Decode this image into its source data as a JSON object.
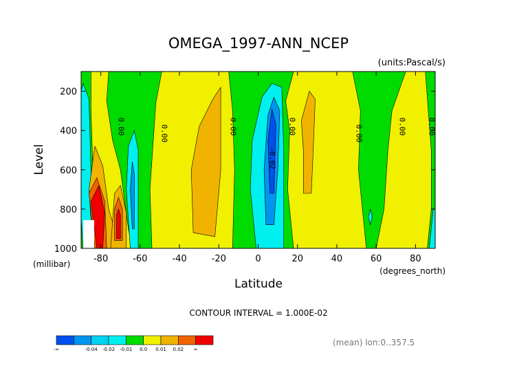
{
  "chart_data": {
    "type": "contour",
    "title": "OMEGA_1997-ANN_NCEP",
    "units_label": "(units:Pascal/s)",
    "xlabel": "Latitude",
    "ylabel": "Level",
    "x_unit_label": "(degrees_north)",
    "y_unit_label": "(millibar)",
    "xlim": [
      -90,
      90
    ],
    "ylim": [
      1000,
      100
    ],
    "xticks": [
      -80,
      -60,
      -40,
      -20,
      0,
      20,
      40,
      60,
      80
    ],
    "xtick_labels": [
      "-80",
      "-60",
      "-40",
      "-20",
      "0",
      "20",
      "40",
      "60",
      "80"
    ],
    "yticks": [
      200,
      400,
      600,
      800,
      1000
    ],
    "ytick_labels": [
      "200",
      "400",
      "600",
      "800",
      "1000"
    ],
    "contour_interval_text": "CONTOUR INTERVAL = 1.000E-02",
    "footer_note": "(mean) lon:0..357.5",
    "colorbar": {
      "colors": [
        "#0050f0",
        "#0096f0",
        "#00d2f0",
        "#00f0f0",
        "#00dc00",
        "#f0f000",
        "#f0b400",
        "#f06400",
        "#f00000"
      ],
      "labels": [
        "-∞",
        "-0.04",
        "-0.02",
        "-0.01",
        "0.0",
        "0.01",
        "0.02",
        "∞"
      ]
    },
    "contour_labels": [
      {
        "text": "0.00",
        "lat": -71,
        "level": 380
      },
      {
        "text": "0.00",
        "lat": -49,
        "level": 415
      },
      {
        "text": "0.00",
        "lat": -14,
        "level": 380
      },
      {
        "text": "-0.02",
        "lat": 6,
        "level": 540
      },
      {
        "text": "0.00",
        "lat": 16,
        "level": 380
      },
      {
        "text": "0.00",
        "lat": 50,
        "level": 415
      },
      {
        "text": "0.00",
        "lat": 72,
        "level": 380
      },
      {
        "text": "0.00",
        "lat": 87,
        "level": 380
      }
    ],
    "regions": [
      {
        "class": "-0.01",
        "color": "#00f0f0",
        "pts": [
          [
            -89,
            1000
          ],
          [
            -90,
            850
          ],
          [
            -90,
            200
          ],
          [
            -89,
            160
          ],
          [
            -86,
            240
          ],
          [
            -85,
            600
          ],
          [
            -84,
            1000
          ]
        ]
      },
      {
        "class": "0.0",
        "color": "#f0f000",
        "pts": [
          [
            -85,
            100
          ],
          [
            -76,
            100
          ],
          [
            -77,
            250
          ],
          [
            -74,
            450
          ],
          [
            -70,
            600
          ],
          [
            -66,
            900
          ],
          [
            -64,
            1000
          ],
          [
            -82,
            1000
          ],
          [
            -84,
            600
          ],
          [
            -85,
            300
          ]
        ]
      },
      {
        "class": "0.01",
        "color": "#f0b400",
        "pts": [
          [
            -84,
            1000
          ],
          [
            -86,
            700
          ],
          [
            -83,
            480
          ],
          [
            -79,
            580
          ],
          [
            -76,
            800
          ],
          [
            -73,
            900
          ],
          [
            -70,
            1000
          ]
        ]
      },
      {
        "class": "0.02",
        "color": "#f06400",
        "pts": [
          [
            -83,
            1000
          ],
          [
            -86,
            720
          ],
          [
            -82,
            640
          ],
          [
            -78,
            760
          ],
          [
            -77,
            1000
          ]
        ]
      },
      {
        "class": ">0.02",
        "color": "#f00000",
        "pts": [
          [
            -82,
            1000
          ],
          [
            -85,
            760
          ],
          [
            -81,
            680
          ],
          [
            -78,
            820
          ],
          [
            -79,
            1000
          ]
        ]
      },
      {
        "class": "0.01",
        "color": "#f0b400",
        "pts": [
          [
            -75,
            1000
          ],
          [
            -74,
            860
          ],
          [
            -73,
            720
          ],
          [
            -70,
            680
          ],
          [
            -67,
            820
          ],
          [
            -67,
            1000
          ]
        ]
      },
      {
        "class": "0.02",
        "color": "#f06400",
        "pts": [
          [
            -73,
            960
          ],
          [
            -73,
            800
          ],
          [
            -71,
            740
          ],
          [
            -69,
            800
          ],
          [
            -69,
            960
          ]
        ]
      },
      {
        "class": ">0.02",
        "color": "#f00000",
        "pts": [
          [
            -72,
            950
          ],
          [
            -72,
            830
          ],
          [
            -71,
            800
          ],
          [
            -70,
            830
          ],
          [
            -70,
            950
          ]
        ]
      },
      {
        "class": "-0.01",
        "color": "#00f0f0",
        "pts": [
          [
            -65,
            1000
          ],
          [
            -67,
            700
          ],
          [
            -66,
            480
          ],
          [
            -63,
            400
          ],
          [
            -61,
            500
          ],
          [
            -61,
            1000
          ]
        ]
      },
      {
        "class": "-0.02",
        "color": "#0096f0",
        "pts": [
          [
            -64,
            900
          ],
          [
            -65,
            700
          ],
          [
            -64,
            560
          ],
          [
            -63,
            620
          ],
          [
            -63,
            900
          ]
        ]
      },
      {
        "class": "0.0",
        "color": "#f0f000",
        "pts": [
          [
            -54,
            1000
          ],
          [
            -55,
            700
          ],
          [
            -52,
            260
          ],
          [
            -49,
            100
          ],
          [
            -15,
            100
          ],
          [
            -13,
            300
          ],
          [
            -12,
            600
          ],
          [
            -13,
            1000
          ]
        ]
      },
      {
        "class": "0.01",
        "color": "#f0b400",
        "pts": [
          [
            -33,
            920
          ],
          [
            -34,
            600
          ],
          [
            -30,
            380
          ],
          [
            -23,
            240
          ],
          [
            -19,
            180
          ],
          [
            -19,
            600
          ],
          [
            -22,
            940
          ]
        ]
      },
      {
        "class": "-0.01",
        "color": "#00f0f0",
        "pts": [
          [
            -1,
            1000
          ],
          [
            -4,
            700
          ],
          [
            -3,
            450
          ],
          [
            2,
            230
          ],
          [
            7,
            160
          ],
          [
            12,
            180
          ],
          [
            13,
            500
          ],
          [
            13,
            1000
          ]
        ]
      },
      {
        "class": "-0.02",
        "color": "#0096f0",
        "pts": [
          [
            4,
            880
          ],
          [
            3,
            600
          ],
          [
            5,
            320
          ],
          [
            8,
            230
          ],
          [
            11,
            300
          ],
          [
            10,
            600
          ],
          [
            8,
            880
          ]
        ]
      },
      {
        "class": "-0.04",
        "color": "#0050f0",
        "pts": [
          [
            6,
            720
          ],
          [
            5,
            450
          ],
          [
            7,
            290
          ],
          [
            9,
            370
          ],
          [
            8,
            720
          ]
        ]
      },
      {
        "class": "0.0",
        "color": "#f0f000",
        "pts": [
          [
            18,
            1000
          ],
          [
            15,
            700
          ],
          [
            16,
            400
          ],
          [
            14,
            250
          ],
          [
            18,
            100
          ],
          [
            48,
            100
          ],
          [
            52,
            300
          ],
          [
            51,
            600
          ],
          [
            54,
            900
          ],
          [
            55,
            1000
          ]
        ]
      },
      {
        "class": "0.01",
        "color": "#f0b400",
        "pts": [
          [
            23,
            720
          ],
          [
            23,
            500
          ],
          [
            22,
            350
          ],
          [
            26,
            200
          ],
          [
            29,
            240
          ],
          [
            28,
            500
          ],
          [
            27,
            720
          ]
        ]
      },
      {
        "class": "0.0",
        "color": "#f0f000",
        "pts": [
          [
            60,
            1000
          ],
          [
            64,
            800
          ],
          [
            66,
            500
          ],
          [
            68,
            300
          ],
          [
            75,
            100
          ],
          [
            85,
            100
          ],
          [
            88,
            500
          ],
          [
            88,
            800
          ],
          [
            86,
            1000
          ]
        ]
      },
      {
        "class": "-0.01",
        "color": "#00f0f0",
        "pts": [
          [
            87,
            1000
          ],
          [
            89,
            800
          ],
          [
            90,
            800
          ],
          [
            90,
            1000
          ]
        ]
      },
      {
        "class": "-0.01",
        "color": "#00f0f0",
        "pts": [
          [
            56,
            840
          ],
          [
            57,
            800
          ],
          [
            58,
            840
          ],
          [
            57,
            880
          ]
        ]
      }
    ]
  }
}
